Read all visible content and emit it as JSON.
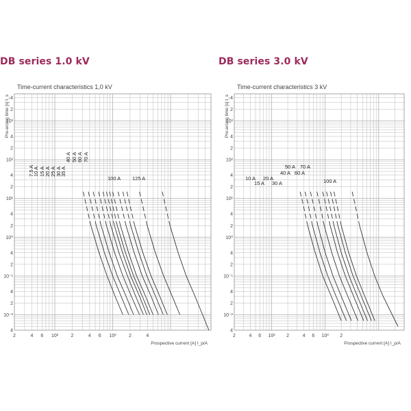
{
  "left_heading": "DB series 1.0 kV",
  "right_heading": "DB series 3.0 kV",
  "colors": {
    "heading": "#9b2a5a",
    "curve": "#333333",
    "grid": "#b9b9b9"
  },
  "chart_data": [
    {
      "type": "line",
      "title": "Time-current characteristics 1,0 kV",
      "xlabel": "Prospective current [A]  I_p/A",
      "ylabel": "Pre-arcing time [s]  t_s",
      "xscale": "log",
      "yscale": "log",
      "xlim": [
        2,
        5000
      ],
      "ylim": [
        0.004,
        5000
      ],
      "grid": true,
      "x_tick_labels": [
        "2",
        "4",
        "6",
        "10²",
        "2",
        "4",
        "6",
        "10³",
        "2",
        "4"
      ],
      "y_tick_labels": [
        "4",
        "2",
        "10³",
        "4",
        "2",
        "10²",
        "4",
        "2",
        "10¹",
        "4",
        "2",
        "10⁰",
        "4",
        "2",
        "10⁻¹",
        "4",
        "2",
        "10⁻²",
        "4"
      ],
      "series": [
        {
          "name": "7,5 A",
          "x": [
            31,
            34,
            42,
            58,
            80,
            110,
            150
          ],
          "y": [
            15,
            8,
            2.0,
            0.4,
            0.1,
            0.03,
            0.01
          ]
        },
        {
          "name": "10 A",
          "x": [
            38,
            42,
            52,
            72,
            100,
            140,
            190
          ],
          "y": [
            15,
            8,
            2.0,
            0.4,
            0.1,
            0.03,
            0.01
          ]
        },
        {
          "name": "15 A",
          "x": [
            46,
            51,
            63,
            87,
            120,
            170,
            230
          ],
          "y": [
            15,
            8,
            2.0,
            0.4,
            0.1,
            0.03,
            0.01
          ]
        },
        {
          "name": "20 A",
          "x": [
            57,
            63,
            78,
            108,
            150,
            210,
            290
          ],
          "y": [
            15,
            8,
            2.0,
            0.4,
            0.1,
            0.03,
            0.01
          ]
        },
        {
          "name": "25 A",
          "x": [
            68,
            75,
            93,
            128,
            180,
            250,
            340
          ],
          "y": [
            15,
            8,
            2.0,
            0.4,
            0.1,
            0.03,
            0.01
          ]
        },
        {
          "name": "30 A",
          "x": [
            78,
            86,
            107,
            148,
            205,
            290,
            390
          ],
          "y": [
            15,
            8,
            2.0,
            0.4,
            0.1,
            0.03,
            0.01
          ]
        },
        {
          "name": "35 A",
          "x": [
            88,
            97,
            120,
            166,
            230,
            325,
            440
          ],
          "y": [
            15,
            8,
            2.0,
            0.4,
            0.1,
            0.03,
            0.01
          ]
        },
        {
          "name": "40 A",
          "x": [
            100,
            110,
            136,
            188,
            260,
            370,
            500
          ],
          "y": [
            15,
            8,
            2.0,
            0.4,
            0.1,
            0.03,
            0.01
          ]
        },
        {
          "name": "50 A",
          "x": [
            124,
            137,
            170,
            235,
            325,
            460,
            620
          ],
          "y": [
            15,
            8,
            2.0,
            0.4,
            0.1,
            0.03,
            0.01
          ]
        },
        {
          "name": "60 A",
          "x": [
            150,
            165,
            205,
            283,
            390,
            550,
            750
          ],
          "y": [
            15,
            8,
            2.0,
            0.4,
            0.1,
            0.03,
            0.01
          ]
        },
        {
          "name": "70 A",
          "x": [
            176,
            194,
            240,
            332,
            460,
            650,
            880
          ],
          "y": [
            15,
            8,
            2.0,
            0.4,
            0.1,
            0.03,
            0.01
          ]
        },
        {
          "name": "100 A",
          "x": [
            290,
            320,
            395,
            545,
            760,
            1070,
            1450
          ],
          "y": [
            15,
            8,
            2.0,
            0.4,
            0.1,
            0.03,
            0.01
          ]
        },
        {
          "name": "125 A",
          "x": [
            720,
            790,
            980,
            1350,
            1870,
            2650,
            4600
          ],
          "y": [
            15,
            8,
            2.0,
            0.4,
            0.1,
            0.03,
            0.004
          ]
        }
      ]
    },
    {
      "type": "line",
      "title": "Time-current characteristics 3 kV",
      "xlabel": "Prospective current [A]  I_p/A",
      "ylabel": "Pre-arcing time [s]  t_s",
      "xscale": "log",
      "yscale": "log",
      "xlim": [
        2,
        3000
      ],
      "ylim": [
        0.004,
        5000
      ],
      "grid": true,
      "x_tick_labels": [
        "2",
        "4",
        "6",
        "10²",
        "2",
        "4",
        "6",
        "10³",
        "2"
      ],
      "y_tick_labels": [
        "4",
        "2",
        "10³",
        "4",
        "2",
        "10²",
        "4",
        "2",
        "10¹",
        "4",
        "2",
        "10⁰",
        "4",
        "2",
        "10⁻¹",
        "4",
        "2",
        "10⁻²",
        "4"
      ],
      "series": [
        {
          "name": "10 A",
          "x": [
            34,
            38,
            47,
            65,
            90,
            130,
            200
          ],
          "y": [
            15,
            8,
            2.0,
            0.4,
            0.1,
            0.03,
            0.007
          ]
        },
        {
          "name": "15 A",
          "x": [
            42,
            47,
            58,
            80,
            112,
            160,
            250
          ],
          "y": [
            15,
            8,
            2.0,
            0.4,
            0.1,
            0.03,
            0.007
          ]
        },
        {
          "name": "20 A",
          "x": [
            53,
            59,
            73,
            100,
            140,
            200,
            310
          ],
          "y": [
            15,
            8,
            2.0,
            0.4,
            0.1,
            0.03,
            0.007
          ]
        },
        {
          "name": "30 A",
          "x": [
            70,
            78,
            96,
            133,
            185,
            265,
            410
          ],
          "y": [
            15,
            8,
            2.0,
            0.4,
            0.1,
            0.03,
            0.007
          ]
        },
        {
          "name": "40 A",
          "x": [
            90,
            100,
            124,
            170,
            238,
            340,
            525
          ],
          "y": [
            15,
            8,
            2.0,
            0.4,
            0.1,
            0.03,
            0.007
          ]
        },
        {
          "name": "50 A",
          "x": [
            106,
            118,
            146,
            200,
            280,
            400,
            620
          ],
          "y": [
            15,
            8,
            2.0,
            0.4,
            0.1,
            0.03,
            0.007
          ]
        },
        {
          "name": "60 A",
          "x": [
            126,
            140,
            173,
            238,
            332,
            475,
            735
          ],
          "y": [
            15,
            8,
            2.0,
            0.4,
            0.1,
            0.03,
            0.007
          ]
        },
        {
          "name": "70 A",
          "x": [
            146,
            162,
            200,
            275,
            385,
            550,
            850
          ],
          "y": [
            15,
            8,
            2.0,
            0.4,
            0.1,
            0.03,
            0.007
          ]
        },
        {
          "name": "100 A",
          "x": [
            320,
            355,
            440,
            605,
            845,
            1210,
            2300
          ],
          "y": [
            15,
            8,
            2.0,
            0.4,
            0.1,
            0.03,
            0.005
          ]
        }
      ]
    }
  ]
}
